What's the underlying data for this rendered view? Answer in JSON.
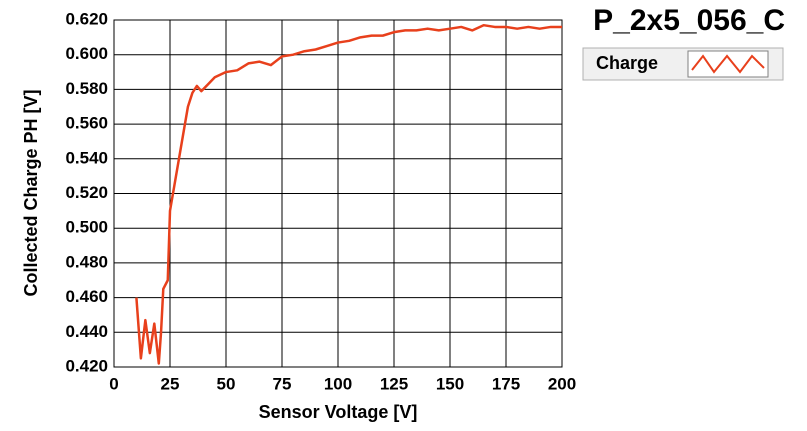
{
  "chart_data": {
    "type": "line",
    "title": "P_2x5_056_C",
    "xlabel": "Sensor Voltage [V]",
    "ylabel": "Collected Charge PH [V]",
    "x": [
      10,
      12,
      14,
      16,
      18,
      20,
      21,
      22,
      24,
      25,
      27,
      29,
      31,
      33,
      35,
      37,
      39,
      42,
      45,
      50,
      55,
      60,
      65,
      70,
      75,
      80,
      85,
      90,
      95,
      100,
      105,
      110,
      115,
      120,
      125,
      130,
      135,
      140,
      145,
      150,
      155,
      160,
      165,
      170,
      175,
      180,
      185,
      190,
      195,
      200
    ],
    "series": [
      {
        "name": "Charge",
        "color": "#e8401c",
        "values": [
          0.46,
          0.425,
          0.447,
          0.428,
          0.445,
          0.422,
          0.44,
          0.465,
          0.47,
          0.51,
          0.525,
          0.54,
          0.555,
          0.57,
          0.578,
          0.582,
          0.579,
          0.583,
          0.587,
          0.59,
          0.591,
          0.595,
          0.596,
          0.594,
          0.599,
          0.6,
          0.602,
          0.603,
          0.605,
          0.607,
          0.608,
          0.61,
          0.611,
          0.611,
          0.613,
          0.614,
          0.614,
          0.615,
          0.614,
          0.615,
          0.616,
          0.614,
          0.617,
          0.616,
          0.616,
          0.615,
          0.616,
          0.615,
          0.616,
          0.616
        ]
      }
    ],
    "xlim": [
      0,
      200
    ],
    "xticks": [
      0,
      25,
      50,
      75,
      100,
      125,
      150,
      175,
      200
    ],
    "ylim": [
      0.42,
      0.62
    ],
    "yticks": [
      {
        "value": 0.42,
        "label": "0.420"
      },
      {
        "value": 0.44,
        "label": "0.440"
      },
      {
        "value": 0.46,
        "label": "0.460"
      },
      {
        "value": 0.48,
        "label": "0.480"
      },
      {
        "value": 0.5,
        "label": "0.500"
      },
      {
        "value": 0.52,
        "label": "0.520"
      },
      {
        "value": 0.54,
        "label": "0.540"
      },
      {
        "value": 0.56,
        "label": "0.560"
      },
      {
        "value": 0.58,
        "label": "0.580"
      },
      {
        "value": 0.6,
        "label": "0.600"
      },
      {
        "value": 0.62,
        "label": "0.620"
      }
    ],
    "grid": true
  }
}
